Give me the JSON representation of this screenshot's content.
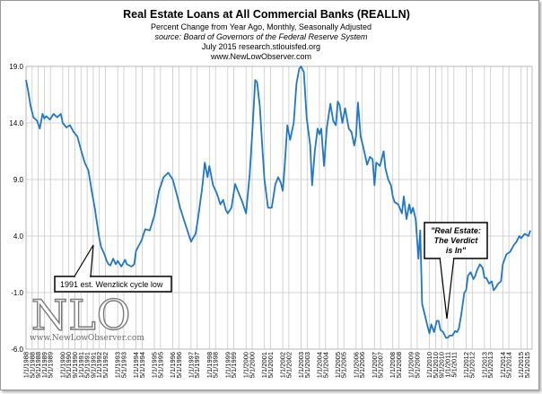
{
  "chart_data": {
    "type": "line",
    "title": "Real Estate Loans at All Commercial Banks (REALLN)",
    "subtitle_lines": [
      "Percent Change from Year Ago, Monthly, Seasonally Adjusted",
      "source: Board of Governors of the Federal Reserve System",
      "July 2015  research.stlouisfed.org",
      "www.NewLowObserver.com"
    ],
    "ylim": [
      -6.0,
      19.0
    ],
    "yticks": [
      19.0,
      14.0,
      9.0,
      4.0,
      -1.0,
      -6.0
    ],
    "ytick_labels": [
      "19.0",
      "14.0",
      "9.0",
      "4.0",
      "-1.0",
      "-6.0"
    ],
    "xlim": [
      1988.0,
      2015.6
    ],
    "xtick_positions": [
      1988.0,
      1988.333,
      1988.667,
      1989.0,
      1989.333,
      1990.0,
      1990.333,
      1990.667,
      1991.0,
      1991.333,
      1991.667,
      1992.0,
      1992.333,
      1993.0,
      1993.333,
      1994.0,
      1994.333,
      1995.0,
      1995.333,
      1996.0,
      1996.333,
      1997.0,
      1997.333,
      1998.0,
      1998.333,
      1999.0,
      1999.333,
      2000.0,
      2000.333,
      2001.0,
      2001.333,
      2002.0,
      2002.333,
      2003.0,
      2003.333,
      2004.0,
      2004.333,
      2005.0,
      2005.333,
      2006.0,
      2006.333,
      2007.0,
      2007.333,
      2008.0,
      2008.333,
      2009.0,
      2009.333,
      2010.0,
      2010.333,
      2010.667,
      2011.0,
      2011.333,
      2012.0,
      2012.333,
      2013.0,
      2013.333,
      2014.0,
      2014.333,
      2015.0,
      2015.333
    ],
    "xtick_labels": [
      "1/1/1988",
      "5/1/1988",
      "9/1/1988",
      "1/1/1989",
      "5/1/1989",
      "1/1/1990",
      "5/1/1990",
      "9/1/1990",
      "1/1/1991",
      "5/1/1991",
      "9/1/1991",
      "1/1/1992",
      "5/1/1992",
      "1/1/1993",
      "5/1/1993",
      "1/1/1994",
      "5/1/1994",
      "1/1/1995",
      "5/1/1995",
      "1/1/1996",
      "5/1/1996",
      "1/1/1997",
      "5/1/1997",
      "1/1/1998",
      "5/1/1998",
      "1/1/1999",
      "5/1/1999",
      "1/1/2000",
      "5/1/2000",
      "1/1/2001",
      "5/1/2001",
      "1/1/2002",
      "5/1/2002",
      "1/1/2003",
      "5/1/2003",
      "1/1/2004",
      "5/1/2004",
      "1/1/2005",
      "5/1/2005",
      "1/1/2006",
      "5/1/2006",
      "1/1/2007",
      "5/1/2007",
      "1/1/2008",
      "5/1/2008",
      "1/1/2009",
      "5/1/2009",
      "1/1/2010",
      "5/1/2010",
      "9/1/2010",
      "1/1/2011",
      "5/1/2011",
      "1/1/2012",
      "5/1/2012",
      "1/1/2013",
      "5/1/2013",
      "1/1/2014",
      "5/1/2014",
      "1/1/2015",
      "5/1/2015"
    ],
    "grid": true,
    "series": [
      {
        "color": "#1f77c8",
        "x": [
          1988.0,
          1988.1,
          1988.25,
          1988.4,
          1988.6,
          1988.75,
          1988.9,
          1989.0,
          1989.1,
          1989.3,
          1989.5,
          1989.7,
          1989.9,
          1990.0,
          1990.2,
          1990.4,
          1990.6,
          1990.8,
          1991.0,
          1991.2,
          1991.4,
          1991.6,
          1991.75,
          1991.9,
          1992.0,
          1992.1,
          1992.25,
          1992.4,
          1992.5,
          1992.6,
          1992.75,
          1992.9,
          1993.0,
          1993.2,
          1993.4,
          1993.5,
          1993.75,
          1993.9,
          1994.0,
          1994.3,
          1994.5,
          1994.75,
          1995.0,
          1995.25,
          1995.5,
          1995.75,
          1996.0,
          1996.25,
          1996.4,
          1996.6,
          1996.8,
          1997.0,
          1997.1,
          1997.25,
          1997.4,
          1997.6,
          1997.75,
          1997.9,
          1998.0,
          1998.2,
          1998.4,
          1998.6,
          1998.75,
          1998.9,
          1999.0,
          1999.2,
          1999.4,
          1999.6,
          1999.8,
          2000.0,
          2000.2,
          2000.35,
          2000.5,
          2000.6,
          2000.75,
          2000.9,
          2001.0,
          2001.2,
          2001.4,
          2001.6,
          2001.75,
          2001.9,
          2002.0,
          2002.1,
          2002.25,
          2002.4,
          2002.6,
          2002.75,
          2002.9,
          2003.0,
          2003.15,
          2003.3,
          2003.5,
          2003.6,
          2003.75,
          2003.9,
          2004.0,
          2004.1,
          2004.25,
          2004.4,
          2004.6,
          2004.75,
          2004.9,
          2005.0,
          2005.1,
          2005.25,
          2005.4,
          2005.6,
          2005.75,
          2005.9,
          2006.0,
          2006.1,
          2006.25,
          2006.4,
          2006.6,
          2006.75,
          2006.9,
          2007.0,
          2007.1,
          2007.3,
          2007.5,
          2007.6,
          2007.75,
          2007.9,
          2008.0,
          2008.1,
          2008.3,
          2008.5,
          2008.6,
          2008.75,
          2008.9,
          2009.0,
          2009.1,
          2009.25,
          2009.4,
          2009.5,
          2009.6,
          2009.75,
          2009.9,
          2010.0,
          2010.1,
          2010.25,
          2010.4,
          2010.5,
          2010.6,
          2010.75,
          2010.9,
          2011.0,
          2011.1,
          2011.25,
          2011.4,
          2011.5,
          2011.6,
          2011.75,
          2011.9,
          2012.0,
          2012.1,
          2012.25,
          2012.4,
          2012.5,
          2012.6,
          2012.75,
          2012.9,
          2013.0,
          2013.1,
          2013.25,
          2013.4,
          2013.5,
          2013.6,
          2013.75,
          2013.9,
          2014.0,
          2014.2,
          2014.4,
          2014.6,
          2014.75,
          2014.9,
          2015.0,
          2015.2,
          2015.4,
          2015.5
        ],
        "y": [
          17.8,
          17.0,
          15.5,
          14.5,
          14.2,
          13.5,
          14.8,
          14.4,
          14.6,
          14.3,
          14.8,
          14.5,
          14.8,
          14.0,
          13.6,
          13.8,
          13.2,
          12.8,
          11.6,
          10.5,
          9.8,
          7.8,
          6.5,
          4.8,
          3.8,
          3.0,
          2.5,
          1.8,
          1.5,
          1.4,
          2.0,
          1.5,
          1.8,
          1.3,
          1.9,
          1.5,
          1.3,
          1.5,
          2.7,
          3.6,
          4.6,
          4.5,
          5.8,
          8.0,
          9.2,
          9.6,
          9.0,
          7.5,
          6.5,
          5.5,
          4.5,
          3.5,
          3.8,
          4.2,
          5.8,
          8.2,
          10.5,
          9.2,
          10.2,
          8.5,
          7.8,
          6.8,
          7.2,
          6.3,
          6.0,
          6.5,
          8.6,
          7.8,
          7.0,
          6.0,
          9.5,
          13.5,
          17.8,
          17.6,
          15.5,
          11.5,
          9.0,
          6.5,
          6.5,
          8.6,
          9.2,
          8.7,
          8.0,
          10.0,
          13.8,
          12.5,
          14.0,
          17.5,
          18.8,
          19.0,
          18.5,
          14.5,
          12.0,
          8.5,
          11.5,
          13.5,
          13.0,
          13.5,
          10.2,
          13.5,
          15.7,
          14.2,
          13.8,
          15.9,
          15.6,
          14.0,
          15.3,
          13.5,
          13.2,
          12.0,
          12.9,
          15.8,
          12.8,
          11.8,
          10.3,
          11.0,
          10.8,
          8.5,
          10.5,
          10.2,
          11.5,
          10.0,
          9.0,
          8.5,
          7.5,
          7.0,
          6.8,
          6.0,
          7.5,
          5.5,
          6.8,
          6.0,
          6.5,
          5.5,
          2.0,
          4.5,
          -2.0,
          -3.0,
          -4.0,
          -4.6,
          -3.8,
          -4.5,
          -3.5,
          -3.5,
          -4.3,
          -4.5,
          -5.0,
          -5.0,
          -4.8,
          -4.8,
          -4.4,
          -4.5,
          -4.2,
          -2.8,
          -1.0,
          -0.8,
          0.5,
          0.8,
          0.2,
          0.5,
          1.0,
          1.5,
          1.2,
          0.3,
          0.3,
          -0.2,
          0.0,
          -0.8,
          -0.6,
          -0.2,
          0.0,
          1.5,
          2.4,
          2.6,
          3.2,
          3.5,
          4.0,
          3.8,
          4.2,
          4.0,
          4.5
        ]
      }
    ],
    "annotations": {
      "wenzlick": "1991 est. Wenzlick cycle low",
      "verdict_lines": [
        "\"Real Estate:",
        "The Verdict",
        "is In\""
      ]
    },
    "watermark": {
      "logo": "NLO",
      "site": "www.NewLowObserver.com"
    }
  }
}
